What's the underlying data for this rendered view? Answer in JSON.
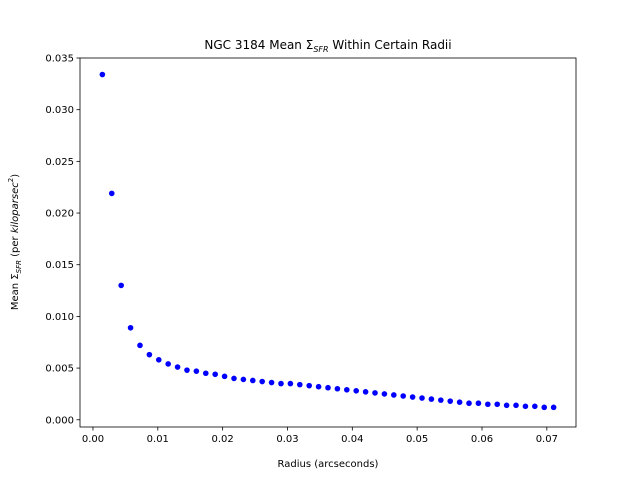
{
  "chart_data": {
    "type": "scatter",
    "title": {
      "pre": "NGC 3184 Mean Σ",
      "sub": "SFR",
      "post": " Within Certain Radii"
    },
    "xlabel": "Radius (arcseconds)",
    "ylabel": {
      "pre": "Mean Σ",
      "sub": "SFR",
      "mid": " (per ",
      "italic": "kiloparsec",
      "sup": "2",
      "post": ")"
    },
    "xlim": [
      -0.002,
      0.0745
    ],
    "ylim": [
      -0.0007,
      0.035
    ],
    "xticks": [
      0.0,
      0.01,
      0.02,
      0.03,
      0.04,
      0.05,
      0.06,
      0.07
    ],
    "xtick_labels": [
      "0.00",
      "0.01",
      "0.02",
      "0.03",
      "0.04",
      "0.05",
      "0.06",
      "0.07"
    ],
    "yticks": [
      0.0,
      0.005,
      0.01,
      0.015,
      0.02,
      0.025,
      0.03,
      0.035
    ],
    "ytick_labels": [
      "0.000",
      "0.005",
      "0.010",
      "0.015",
      "0.020",
      "0.025",
      "0.030",
      "0.035"
    ],
    "grid": false,
    "marker_color": "#0000ff",
    "x": [
      0.00145,
      0.0029,
      0.00435,
      0.0058,
      0.00725,
      0.0087,
      0.01015,
      0.0116,
      0.01305,
      0.0145,
      0.01595,
      0.0174,
      0.01885,
      0.0203,
      0.02175,
      0.0232,
      0.02465,
      0.0261,
      0.02755,
      0.029,
      0.03045,
      0.0319,
      0.03335,
      0.0348,
      0.03625,
      0.0377,
      0.03915,
      0.0406,
      0.04205,
      0.0435,
      0.04495,
      0.0464,
      0.04785,
      0.0493,
      0.05075,
      0.0522,
      0.05365,
      0.0551,
      0.05655,
      0.058,
      0.05945,
      0.0609,
      0.06235,
      0.0638,
      0.06525,
      0.0667,
      0.06815,
      0.0696,
      0.07105
    ],
    "y": [
      0.0334,
      0.0219,
      0.013,
      0.0089,
      0.0072,
      0.0063,
      0.0058,
      0.0054,
      0.0051,
      0.0048,
      0.0047,
      0.0045,
      0.0044,
      0.0042,
      0.004,
      0.0039,
      0.0038,
      0.0037,
      0.0036,
      0.0035,
      0.0035,
      0.0034,
      0.0033,
      0.0032,
      0.0031,
      0.003,
      0.0029,
      0.0028,
      0.0027,
      0.0026,
      0.0025,
      0.0024,
      0.0023,
      0.0022,
      0.0021,
      0.002,
      0.0019,
      0.0018,
      0.0017,
      0.0016,
      0.0016,
      0.0015,
      0.0015,
      0.0014,
      0.0014,
      0.0013,
      0.0013,
      0.0012,
      0.0012
    ]
  }
}
